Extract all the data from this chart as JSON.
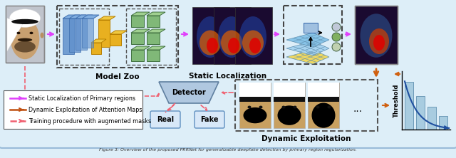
{
  "fig_width": 6.4,
  "fig_height": 2.22,
  "dpi": 100,
  "bg_color": "#ddeef8",
  "border_color": "#99bbd8",
  "legend_items": [
    {
      "label": "Static Localization of Primary regions",
      "color": "#e040fb",
      "linestyle": "solid"
    },
    {
      "label": "Dynamic Exploitation of Attention Maps",
      "color": "#c05010",
      "linestyle": "solid"
    },
    {
      "label": "Training procedure with augmented masks",
      "color": "#f06070",
      "linestyle": "dashed"
    }
  ],
  "model_zoo_label": "Model Zoo",
  "static_loc_label": "Static Localization",
  "dynamic_exp_label": "Dynamic Exploitation",
  "detector_label": "Detector",
  "threshold_label": "Threshold",
  "real_label": "Real",
  "fake_label": "Fake",
  "bar_values": [
    0.88,
    0.62,
    0.42,
    0.25
  ],
  "bar_color": "#a8cce0",
  "bar_edge_color": "#6090b0",
  "curve_color": "#2050a0",
  "arrow_color_orange": "#d06010",
  "arrow_color_pink": "#e040fb",
  "arrow_color_red": "#f06070",
  "caption": "Figure 3: Overview of the proposed PRRNet for generalizable deepfake detection by primary region regularization."
}
